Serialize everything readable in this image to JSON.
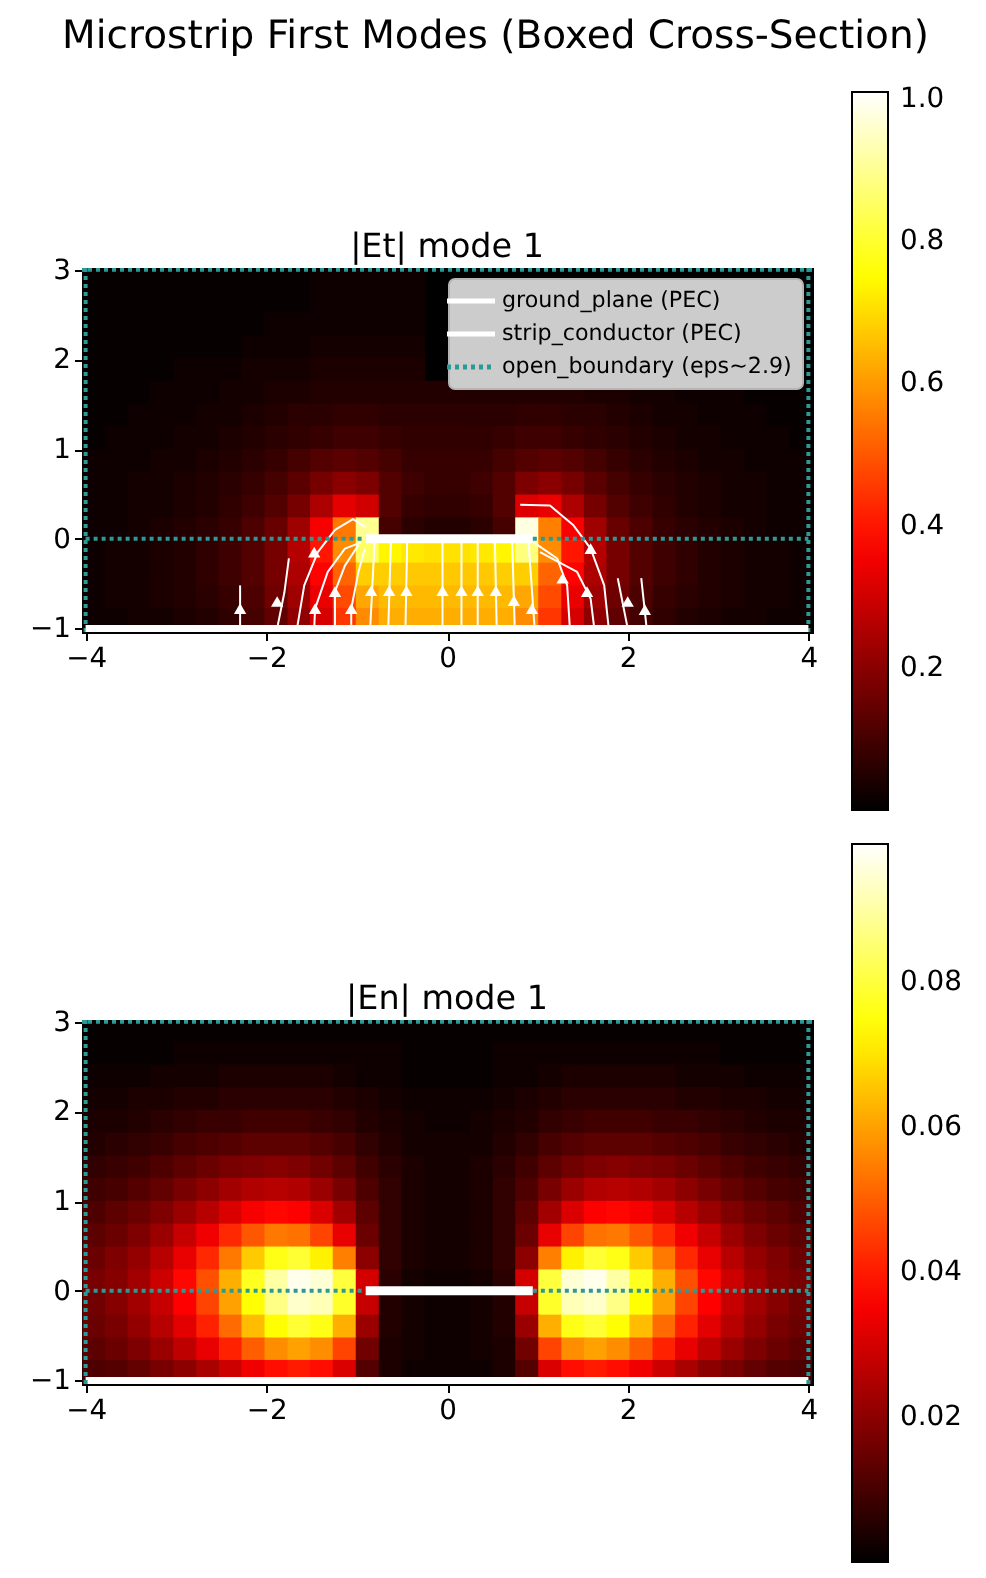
{
  "chart_data": [
    {
      "type": "heatmap",
      "title": "Microstrip First Modes (Boxed Cross-Section)",
      "subtitle": "|Et| mode 1",
      "x": [
        -3.91,
        -3.66,
        -3.41,
        -3.16,
        -2.9,
        -2.65,
        -2.4,
        -2.15,
        -1.89,
        -1.64,
        -1.39,
        -1.14,
        -0.88,
        -0.63,
        -0.38,
        -0.13,
        0.13,
        0.38,
        0.63,
        0.88,
        1.14,
        1.39,
        1.64,
        1.89,
        2.15,
        2.4,
        2.65,
        2.9,
        3.16,
        3.41,
        3.66,
        3.91
      ],
      "y": [
        2.89,
        2.64,
        2.38,
        2.13,
        1.88,
        1.62,
        1.37,
        1.12,
        0.86,
        0.61,
        0.35,
        0.1,
        -0.15,
        -0.41,
        -0.66,
        -0.91
      ],
      "cells": [
        [
          0.01,
          0.01,
          0.01,
          0.01,
          0.01,
          0.01,
          0.01,
          0.01,
          0.01,
          0.01,
          0.02,
          0.02,
          0.02,
          0.02,
          0.02,
          null,
          null,
          null,
          null,
          null,
          null,
          null,
          null,
          null,
          null,
          null,
          null,
          null,
          null,
          null,
          null,
          null
        ],
        [
          0.01,
          0.01,
          0.01,
          0.01,
          0.01,
          0.01,
          0.01,
          0.01,
          0.01,
          0.01,
          0.02,
          0.02,
          0.02,
          0.02,
          0.02,
          null,
          null,
          null,
          null,
          null,
          null,
          null,
          null,
          null,
          null,
          null,
          null,
          null,
          null,
          null,
          null,
          null
        ],
        [
          0.01,
          0.01,
          0.01,
          0.01,
          0.01,
          0.01,
          0.01,
          0.01,
          0.02,
          0.02,
          0.02,
          0.02,
          0.02,
          0.02,
          0.02,
          null,
          null,
          null,
          null,
          null,
          null,
          null,
          null,
          null,
          null,
          null,
          null,
          null,
          null,
          null,
          null,
          null
        ],
        [
          0.01,
          0.01,
          0.01,
          0.01,
          0.01,
          0.01,
          0.01,
          0.02,
          0.02,
          0.02,
          0.03,
          0.03,
          0.03,
          0.03,
          0.03,
          null,
          null,
          null,
          null,
          null,
          null,
          null,
          null,
          null,
          null,
          null,
          null,
          null,
          null,
          null,
          null,
          null
        ],
        [
          0.01,
          0.01,
          0.01,
          0.01,
          0.02,
          0.02,
          0.02,
          0.03,
          0.03,
          0.03,
          0.04,
          0.04,
          0.04,
          0.04,
          0.04,
          null,
          null,
          null,
          null,
          null,
          null,
          null,
          null,
          null,
          null,
          null,
          null,
          null,
          null,
          null,
          null,
          null
        ],
        [
          0.01,
          0.01,
          0.01,
          0.02,
          0.02,
          0.02,
          0.03,
          0.03,
          0.04,
          0.04,
          0.05,
          0.05,
          0.05,
          0.05,
          0.05,
          0.05,
          0.05,
          0.05,
          0.05,
          0.05,
          0.05,
          0.05,
          0.04,
          0.04,
          0.03,
          0.03,
          0.02,
          0.02,
          0.02,
          0.01,
          0.01,
          0.01
        ],
        [
          0.01,
          0.01,
          0.02,
          0.02,
          0.02,
          0.03,
          0.03,
          0.04,
          0.05,
          0.06,
          0.06,
          0.07,
          0.07,
          0.06,
          0.06,
          0.06,
          0.06,
          0.06,
          0.06,
          0.07,
          0.07,
          0.06,
          0.06,
          0.05,
          0.04,
          0.03,
          0.03,
          0.02,
          0.02,
          0.02,
          0.01,
          0.01
        ],
        [
          0.01,
          0.02,
          0.02,
          0.02,
          0.03,
          0.03,
          0.04,
          0.05,
          0.06,
          0.07,
          0.08,
          0.09,
          0.09,
          0.08,
          0.07,
          0.07,
          0.07,
          0.07,
          0.08,
          0.09,
          0.09,
          0.08,
          0.07,
          0.06,
          0.05,
          0.04,
          0.03,
          0.03,
          0.02,
          0.02,
          0.02,
          0.01
        ],
        [
          0.02,
          0.02,
          0.02,
          0.03,
          0.03,
          0.04,
          0.05,
          0.06,
          0.08,
          0.1,
          0.12,
          0.13,
          0.12,
          0.1,
          0.08,
          0.08,
          0.08,
          0.08,
          0.1,
          0.12,
          0.13,
          0.12,
          0.1,
          0.08,
          0.06,
          0.05,
          0.04,
          0.03,
          0.03,
          0.02,
          0.02,
          0.02
        ],
        [
          0.02,
          0.02,
          0.03,
          0.03,
          0.04,
          0.05,
          0.06,
          0.08,
          0.1,
          0.13,
          0.17,
          0.2,
          0.18,
          0.12,
          0.09,
          0.08,
          0.08,
          0.09,
          0.12,
          0.18,
          0.2,
          0.17,
          0.13,
          0.1,
          0.08,
          0.06,
          0.05,
          0.04,
          0.03,
          0.03,
          0.02,
          0.02
        ],
        [
          0.02,
          0.02,
          0.03,
          0.03,
          0.04,
          0.05,
          0.07,
          0.09,
          0.12,
          0.17,
          0.25,
          0.33,
          0.3,
          0.12,
          0.08,
          0.07,
          0.07,
          0.08,
          0.12,
          0.32,
          0.34,
          0.25,
          0.17,
          0.12,
          0.09,
          0.07,
          0.05,
          0.04,
          0.03,
          0.03,
          0.02,
          0.02
        ],
        [
          0.02,
          0.02,
          0.03,
          0.04,
          0.05,
          0.06,
          0.08,
          0.11,
          0.15,
          0.23,
          0.36,
          0.55,
          0.9,
          0.1,
          0.06,
          0.05,
          0.05,
          0.06,
          0.1,
          0.98,
          0.56,
          0.36,
          0.23,
          0.15,
          0.11,
          0.08,
          0.06,
          0.05,
          0.04,
          0.03,
          0.02,
          0.02
        ],
        [
          0.02,
          0.03,
          0.03,
          0.04,
          0.05,
          0.07,
          0.09,
          0.12,
          0.17,
          0.26,
          0.4,
          0.58,
          0.85,
          0.74,
          0.72,
          0.71,
          0.71,
          0.72,
          0.74,
          0.88,
          0.58,
          0.4,
          0.26,
          0.17,
          0.12,
          0.09,
          0.07,
          0.05,
          0.04,
          0.03,
          0.03,
          0.02
        ],
        [
          0.02,
          0.03,
          0.03,
          0.04,
          0.05,
          0.07,
          0.09,
          0.12,
          0.17,
          0.25,
          0.37,
          0.52,
          0.68,
          0.68,
          0.67,
          0.67,
          0.67,
          0.67,
          0.68,
          0.68,
          0.52,
          0.37,
          0.25,
          0.17,
          0.12,
          0.09,
          0.07,
          0.05,
          0.04,
          0.03,
          0.03,
          0.02
        ],
        [
          0.02,
          0.03,
          0.03,
          0.04,
          0.05,
          0.06,
          0.08,
          0.11,
          0.16,
          0.23,
          0.34,
          0.48,
          0.62,
          0.65,
          0.65,
          0.65,
          0.65,
          0.65,
          0.65,
          0.62,
          0.48,
          0.34,
          0.23,
          0.16,
          0.11,
          0.08,
          0.06,
          0.05,
          0.04,
          0.03,
          0.03,
          0.02
        ],
        [
          0.02,
          0.02,
          0.03,
          0.03,
          0.04,
          0.05,
          0.07,
          0.1,
          0.14,
          0.21,
          0.31,
          0.45,
          0.58,
          0.63,
          0.63,
          0.63,
          0.63,
          0.63,
          0.63,
          0.58,
          0.45,
          0.31,
          0.21,
          0.14,
          0.1,
          0.07,
          0.05,
          0.04,
          0.03,
          0.03,
          0.02,
          0.02
        ]
      ],
      "clim": [
        0.0,
        1.01
      ],
      "cticks": [
        0.2,
        0.4,
        0.6,
        0.8,
        {
          "value": 1,
          "label": "1.0"
        }
      ],
      "xlim": [
        -4.04,
        4.04
      ],
      "xticks": [
        -4,
        -2,
        0,
        2,
        4
      ],
      "ylim": [
        -1.04,
        3.02
      ],
      "yticks": [
        -1,
        0,
        1,
        2,
        3
      ],
      "legend": "top right",
      "ref_lines": [
        {
          "axis": "x",
          "value": -4,
          "color": "#2b9a96",
          "line_style": "dotted"
        },
        {
          "axis": "x",
          "value": 4,
          "color": "#2b9a96",
          "line_style": "dotted"
        },
        {
          "axis": "y",
          "value": 3,
          "color": "#2b9a96",
          "line_style": "dotted"
        }
      ],
      "series": [
        {
          "name": "ground_plane (PEC)",
          "type": "line",
          "color": "#ffffff",
          "x": [
            -4,
            4
          ],
          "values": [
            -1,
            -1
          ]
        },
        {
          "name": "strip_conductor (PEC)",
          "type": "line",
          "color": "#ffffff",
          "x": [
            -0.9,
            0.95
          ],
          "values": [
            0,
            0
          ]
        },
        {
          "name": "open_boundary (eps~2.9)",
          "type": "line",
          "color": "#2b9a96",
          "line_style": "dotted",
          "x": [
            -4,
            -0.9,
            null,
            0.95,
            4
          ],
          "values": [
            0,
            0,
            null,
            0,
            0
          ]
        },
        {
          "type": "line",
          "color": "#ffffff",
          "x": [
            -2.29,
            -2.29
          ],
          "values": [
            -1.0,
            -0.52
          ]
        },
        {
          "type": "line",
          "color": "#ffffff",
          "x": [
            -1.88,
            -1.8,
            -1.75
          ],
          "values": [
            -1.0,
            -0.6,
            -0.22
          ]
        },
        {
          "type": "line",
          "color": "#ffffff",
          "x": [
            -1.66,
            -1.58,
            -1.43,
            -1.24,
            -1.04,
            -0.9
          ],
          "values": [
            -1.0,
            -0.52,
            -0.15,
            0.1,
            0.22,
            0.13
          ]
        },
        {
          "type": "line",
          "color": "#ffffff",
          "x": [
            -1.47,
            -1.46,
            -1.32,
            -1.13,
            -0.95
          ],
          "values": [
            -1.0,
            -0.78,
            -0.37,
            -0.11,
            -0.04
          ]
        },
        {
          "type": "line",
          "color": "#ffffff",
          "x": [
            -1.24,
            -1.24,
            -1.13,
            -0.98
          ],
          "values": [
            -1.0,
            -0.59,
            -0.3,
            -0.07
          ]
        },
        {
          "type": "line",
          "color": "#ffffff",
          "x": [
            -1.06,
            -1.06,
            -0.98,
            -0.91
          ],
          "values": [
            -1.0,
            -0.78,
            -0.37,
            -0.11
          ]
        },
        {
          "type": "line",
          "color": "#ffffff",
          "x": [
            -0.85,
            -0.8
          ],
          "values": [
            -1.0,
            0.0
          ]
        },
        {
          "type": "line",
          "color": "#ffffff",
          "x": [
            -0.65,
            -0.62
          ],
          "values": [
            -1.0,
            0.0
          ]
        },
        {
          "type": "line",
          "color": "#ffffff",
          "x": [
            -0.46,
            -0.44
          ],
          "values": [
            -1.0,
            0.0
          ]
        },
        {
          "type": "line",
          "color": "#ffffff",
          "x": [
            -0.05,
            -0.05
          ],
          "values": [
            -1.0,
            0.0
          ]
        },
        {
          "type": "line",
          "color": "#ffffff",
          "x": [
            0.16,
            0.16
          ],
          "values": [
            -1.0,
            0.0
          ]
        },
        {
          "type": "line",
          "color": "#ffffff",
          "x": [
            0.34,
            0.34
          ],
          "values": [
            -1.0,
            0.0
          ]
        },
        {
          "type": "line",
          "color": "#ffffff",
          "x": [
            0.55,
            0.53
          ],
          "values": [
            -1.0,
            0.0
          ]
        },
        {
          "type": "line",
          "color": "#ffffff",
          "x": [
            0.75,
            0.72
          ],
          "values": [
            -1.0,
            0.0
          ]
        },
        {
          "type": "line",
          "color": "#ffffff",
          "x": [
            0.97,
            0.9
          ],
          "values": [
            -1.0,
            0.0
          ]
        },
        {
          "type": "line",
          "color": "#ffffff",
          "x": [
            0.81,
            1.14,
            1.4,
            1.59,
            1.74,
            1.79
          ],
          "values": [
            0.38,
            0.37,
            0.15,
            -0.11,
            -0.52,
            -1.0
          ]
        },
        {
          "type": "line",
          "color": "#ffffff",
          "x": [
            0.96,
            1.22,
            1.33,
            1.36
          ],
          "values": [
            -0.04,
            -0.22,
            -0.52,
            -1.0
          ]
        },
        {
          "type": "line",
          "color": "#ffffff",
          "x": [
            1.03,
            1.44,
            1.59,
            1.63
          ],
          "values": [
            -0.15,
            -0.37,
            -0.67,
            -1.0
          ]
        },
        {
          "type": "line",
          "color": "#ffffff",
          "x": [
            1.89,
            2.0
          ],
          "values": [
            -0.44,
            -1.0
          ]
        },
        {
          "type": "line",
          "color": "#ffffff",
          "x": [
            2.15,
            2.21
          ],
          "values": [
            -0.44,
            -1.0
          ]
        },
        {
          "type": "scatter",
          "color": "#ffffff",
          "marker": "triangle",
          "x": [
            -2.29,
            -1.88,
            -1.47,
            -1.46,
            -1.24,
            -1.06,
            -0.84,
            -0.64,
            -0.45,
            -0.05,
            0.16,
            0.34,
            0.54,
            0.74,
            0.94,
            1.28,
            1.55,
            1.59,
            2.0,
            2.19
          ],
          "values": [
            -0.78,
            -0.7,
            -0.15,
            -0.78,
            -0.59,
            -0.78,
            -0.58,
            -0.58,
            -0.58,
            -0.58,
            -0.58,
            -0.58,
            -0.58,
            -0.69,
            -0.78,
            -0.44,
            -0.59,
            -0.11,
            -0.7,
            -0.79
          ]
        }
      ]
    },
    {
      "type": "heatmap",
      "title": "|En| mode 1",
      "x": [
        -3.91,
        -3.66,
        -3.41,
        -3.16,
        -2.9,
        -2.65,
        -2.4,
        -2.15,
        -1.89,
        -1.64,
        -1.39,
        -1.14,
        -0.88,
        -0.63,
        -0.38,
        -0.13,
        0.13,
        0.38,
        0.63,
        0.88,
        1.14,
        1.39,
        1.64,
        1.89,
        2.15,
        2.4,
        2.65,
        2.9,
        3.16,
        3.41,
        3.66,
        3.91
      ],
      "y": [
        2.89,
        2.64,
        2.38,
        2.13,
        1.88,
        1.62,
        1.37,
        1.12,
        0.86,
        0.61,
        0.35,
        0.1,
        -0.15,
        -0.41,
        -0.66,
        -0.91
      ],
      "cells": [
        [
          0.001,
          0.001,
          0.001,
          0.001,
          0.001,
          0.001,
          0.001,
          0.001,
          0.001,
          0.001,
          0.001,
          0.001,
          0.001,
          0.001,
          0.001,
          0.001,
          0.001,
          0.001,
          0.001,
          0.001,
          0.001,
          0.001,
          0.001,
          0.001,
          0.001,
          0.001,
          0.001,
          0.001,
          0.001,
          0.001,
          0.001,
          0.001
        ],
        [
          0.001,
          0.001,
          0.001,
          0.001,
          0.002,
          0.002,
          0.002,
          0.002,
          0.002,
          0.002,
          0.002,
          0.002,
          0.002,
          0.002,
          0.001,
          0.001,
          0.001,
          0.001,
          0.002,
          0.002,
          0.002,
          0.002,
          0.002,
          0.002,
          0.002,
          0.002,
          0.002,
          0.002,
          0.001,
          0.001,
          0.001,
          0.001
        ],
        [
          0.002,
          0.002,
          0.002,
          0.003,
          0.003,
          0.003,
          0.004,
          0.004,
          0.004,
          0.004,
          0.004,
          0.003,
          0.002,
          0.002,
          0.001,
          0.001,
          0.001,
          0.001,
          0.002,
          0.002,
          0.003,
          0.004,
          0.004,
          0.004,
          0.004,
          0.004,
          0.003,
          0.003,
          0.003,
          0.002,
          0.002,
          0.002
        ],
        [
          0.003,
          0.003,
          0.004,
          0.004,
          0.005,
          0.005,
          0.006,
          0.006,
          0.006,
          0.006,
          0.006,
          0.005,
          0.004,
          0.003,
          0.002,
          0.002,
          0.002,
          0.002,
          0.003,
          0.004,
          0.005,
          0.006,
          0.006,
          0.006,
          0.006,
          0.006,
          0.005,
          0.005,
          0.004,
          0.004,
          0.003,
          0.003
        ],
        [
          0.004,
          0.004,
          0.005,
          0.006,
          0.007,
          0.008,
          0.008,
          0.009,
          0.009,
          0.009,
          0.008,
          0.007,
          0.005,
          0.004,
          0.003,
          0.002,
          0.002,
          0.003,
          0.004,
          0.005,
          0.007,
          0.008,
          0.009,
          0.009,
          0.009,
          0.008,
          0.008,
          0.007,
          0.006,
          0.005,
          0.004,
          0.004
        ],
        [
          0.005,
          0.006,
          0.007,
          0.008,
          0.01,
          0.011,
          0.012,
          0.013,
          0.013,
          0.013,
          0.012,
          0.01,
          0.007,
          0.005,
          0.003,
          0.003,
          0.003,
          0.003,
          0.005,
          0.007,
          0.01,
          0.012,
          0.013,
          0.013,
          0.013,
          0.012,
          0.011,
          0.01,
          0.008,
          0.007,
          0.006,
          0.005
        ],
        [
          0.007,
          0.008,
          0.009,
          0.011,
          0.013,
          0.015,
          0.017,
          0.018,
          0.019,
          0.018,
          0.016,
          0.013,
          0.009,
          0.006,
          0.004,
          0.003,
          0.003,
          0.004,
          0.006,
          0.009,
          0.013,
          0.016,
          0.018,
          0.019,
          0.018,
          0.017,
          0.015,
          0.013,
          0.011,
          0.009,
          0.008,
          0.007
        ],
        [
          0.009,
          0.01,
          0.012,
          0.014,
          0.017,
          0.02,
          0.023,
          0.025,
          0.026,
          0.025,
          0.022,
          0.017,
          0.011,
          0.007,
          0.004,
          0.003,
          0.003,
          0.004,
          0.007,
          0.011,
          0.017,
          0.022,
          0.025,
          0.026,
          0.025,
          0.023,
          0.02,
          0.017,
          0.014,
          0.012,
          0.01,
          0.009
        ],
        [
          0.011,
          0.013,
          0.015,
          0.018,
          0.022,
          0.026,
          0.031,
          0.035,
          0.037,
          0.036,
          0.031,
          0.023,
          0.013,
          0.007,
          0.004,
          0.003,
          0.003,
          0.004,
          0.007,
          0.013,
          0.023,
          0.031,
          0.036,
          0.037,
          0.035,
          0.031,
          0.026,
          0.022,
          0.018,
          0.015,
          0.013,
          0.011
        ],
        [
          0.013,
          0.015,
          0.018,
          0.022,
          0.028,
          0.034,
          0.042,
          0.049,
          0.054,
          0.053,
          0.046,
          0.033,
          0.015,
          0.007,
          0.004,
          0.003,
          0.003,
          0.004,
          0.007,
          0.015,
          0.033,
          0.046,
          0.053,
          0.054,
          0.049,
          0.042,
          0.034,
          0.028,
          0.022,
          0.018,
          0.015,
          0.013
        ],
        [
          0.015,
          0.018,
          0.021,
          0.026,
          0.033,
          0.042,
          0.054,
          0.066,
          0.076,
          0.079,
          0.072,
          0.055,
          0.02,
          0.007,
          0.004,
          0.003,
          0.003,
          0.004,
          0.007,
          0.02,
          0.055,
          0.072,
          0.079,
          0.076,
          0.066,
          0.054,
          0.042,
          0.033,
          0.026,
          0.021,
          0.018,
          0.015
        ],
        [
          0.017,
          0.019,
          0.023,
          0.029,
          0.037,
          0.048,
          0.062,
          0.077,
          0.09,
          0.097,
          0.095,
          0.08,
          0.03,
          0.006,
          0.003,
          0.002,
          0.002,
          0.003,
          0.006,
          0.03,
          0.08,
          0.095,
          0.097,
          0.09,
          0.077,
          0.062,
          0.048,
          0.037,
          0.029,
          0.023,
          0.019,
          0.017
        ],
        [
          0.016,
          0.019,
          0.023,
          0.028,
          0.036,
          0.046,
          0.06,
          0.074,
          0.087,
          0.094,
          0.092,
          0.078,
          0.028,
          0.005,
          0.003,
          0.002,
          0.002,
          0.003,
          0.005,
          0.028,
          0.078,
          0.092,
          0.094,
          0.087,
          0.074,
          0.06,
          0.046,
          0.036,
          0.028,
          0.023,
          0.019,
          0.016
        ],
        [
          0.015,
          0.017,
          0.021,
          0.026,
          0.032,
          0.041,
          0.052,
          0.064,
          0.074,
          0.079,
          0.076,
          0.062,
          0.022,
          0.005,
          0.003,
          0.002,
          0.002,
          0.003,
          0.005,
          0.022,
          0.062,
          0.076,
          0.079,
          0.074,
          0.064,
          0.052,
          0.041,
          0.032,
          0.026,
          0.021,
          0.017,
          0.015
        ],
        [
          0.013,
          0.015,
          0.018,
          0.022,
          0.027,
          0.033,
          0.041,
          0.05,
          0.057,
          0.06,
          0.057,
          0.046,
          0.016,
          0.004,
          0.003,
          0.002,
          0.002,
          0.003,
          0.004,
          0.016,
          0.046,
          0.057,
          0.06,
          0.057,
          0.05,
          0.041,
          0.033,
          0.027,
          0.022,
          0.018,
          0.015,
          0.013
        ],
        [
          0.011,
          0.012,
          0.014,
          0.017,
          0.02,
          0.024,
          0.029,
          0.034,
          0.038,
          0.04,
          0.038,
          0.031,
          0.012,
          0.004,
          0.002,
          0.002,
          0.002,
          0.002,
          0.004,
          0.012,
          0.031,
          0.038,
          0.04,
          0.038,
          0.034,
          0.029,
          0.024,
          0.02,
          0.017,
          0.014,
          0.012,
          0.011
        ]
      ],
      "clim": [
        0.0,
        0.099
      ],
      "cticks": [
        0.02,
        0.04,
        0.06,
        0.08
      ],
      "xlim": [
        -4.04,
        4.04
      ],
      "xticks": [
        -4,
        -2,
        0,
        2,
        4
      ],
      "ylim": [
        -1.04,
        3.02
      ],
      "yticks": [
        -1,
        0,
        1,
        2,
        3
      ],
      "ref_lines": [
        {
          "axis": "x",
          "value": -4,
          "color": "#2b9a96",
          "line_style": "dotted"
        },
        {
          "axis": "x",
          "value": 4,
          "color": "#2b9a96",
          "line_style": "dotted"
        },
        {
          "axis": "y",
          "value": 3,
          "color": "#2b9a96",
          "line_style": "dotted"
        }
      ],
      "series": [
        {
          "type": "line",
          "color": "#ffffff",
          "x": [
            -4,
            4
          ],
          "values": [
            -1,
            -1
          ]
        },
        {
          "type": "line",
          "color": "#ffffff",
          "x": [
            -0.9,
            0.95
          ],
          "values": [
            0,
            0
          ]
        },
        {
          "type": "line",
          "color": "#2b9a96",
          "line_style": "dotted",
          "x": [
            -4,
            -0.9,
            null,
            0.95,
            4
          ],
          "values": [
            0,
            0,
            null,
            0,
            0
          ]
        }
      ]
    }
  ]
}
